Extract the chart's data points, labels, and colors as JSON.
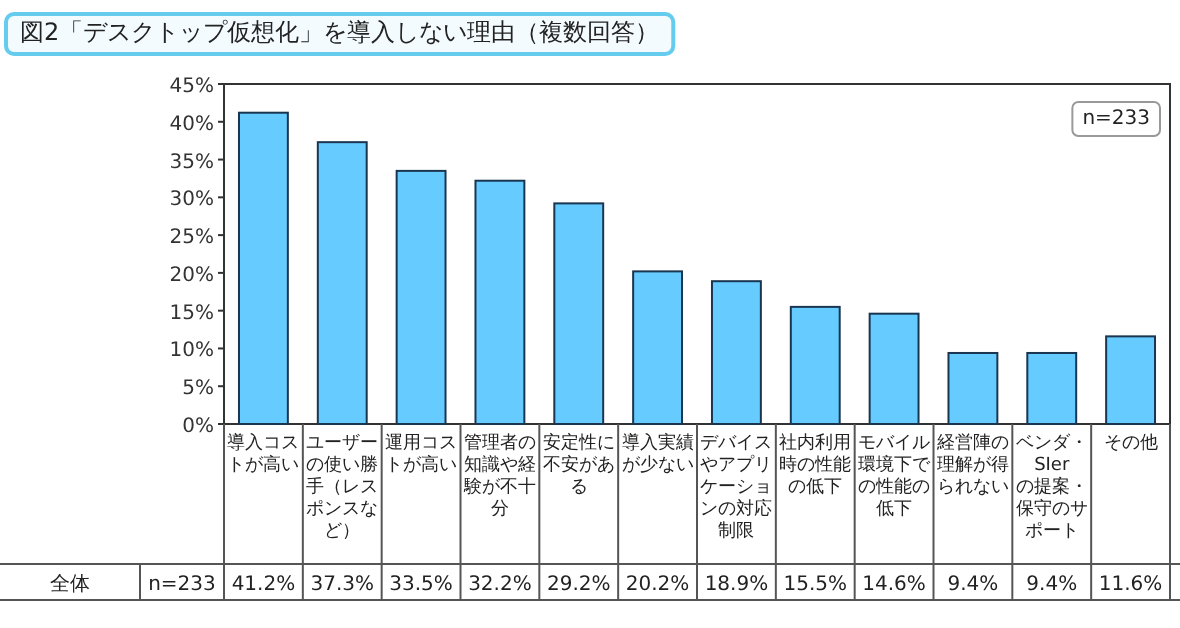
{
  "chart_data": {
    "type": "bar",
    "title": "図2「デスクトップ仮想化」を導入しない理由（複数回答）",
    "categories": [
      "導入コストが高い",
      "ユーザーの使い勝手（レスポンスなど）",
      "運用コストが高い",
      "管理者の知識や経験が不十分",
      "安定性に不安がある",
      "導入実績が少ない",
      "デバイスやアプリケーションの対応制限",
      "社内利用時の性能の低下",
      "モバイル環境下での性能の低下",
      "経営陣の理解が得られない",
      "ベンダ・SIerの提案・保守のサポート",
      "その他"
    ],
    "values": [
      41.2,
      37.3,
      33.5,
      32.2,
      29.2,
      20.2,
      18.9,
      15.5,
      14.6,
      9.4,
      9.4,
      11.6
    ],
    "value_labels": [
      "41.2%",
      "37.3%",
      "33.5%",
      "32.2%",
      "29.2%",
      "20.2%",
      "18.9%",
      "15.5%",
      "14.6%",
      "9.4%",
      "9.4%",
      "11.6%"
    ],
    "color": "#66ccff",
    "ylim": [
      0,
      45
    ],
    "yticks": [
      {
        "value": 0,
        "label": "0%"
      },
      {
        "value": 5,
        "label": "5%"
      },
      {
        "value": 10,
        "label": "10%"
      },
      {
        "value": 15,
        "label": "15%"
      },
      {
        "value": 20,
        "label": "20%"
      },
      {
        "value": 25,
        "label": "25%"
      },
      {
        "value": 30,
        "label": "30%"
      },
      {
        "value": 35,
        "label": "35%"
      },
      {
        "value": 40,
        "label": "40%"
      },
      {
        "value": 45,
        "label": "45%"
      }
    ],
    "annotations": [
      "n=233",
      "全体",
      "n=233"
    ]
  }
}
